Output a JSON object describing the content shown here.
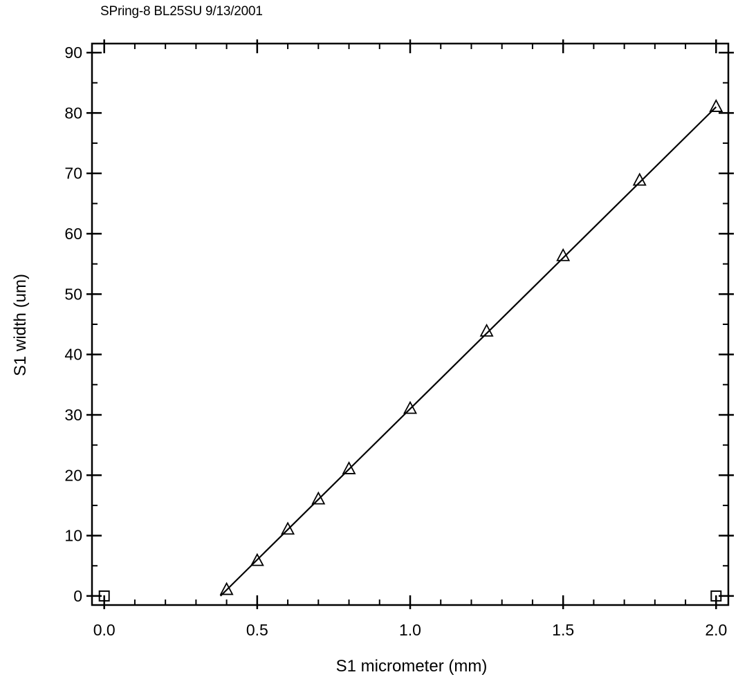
{
  "header_note": "SPring-8 BL25SU 9/13/2001",
  "chart_data": {
    "type": "line",
    "title": "",
    "xlabel": "S1 micrometer (mm)",
    "ylabel": "S1 width (um)",
    "xlim": [
      -0.04,
      2.04
    ],
    "ylim": [
      -1.5,
      91.5
    ],
    "x_ticks": [
      "0.0",
      "0.5",
      "1.0",
      "1.5",
      "2.0"
    ],
    "x_tick_values": [
      0,
      0.5,
      1.0,
      1.5,
      2.0
    ],
    "y_ticks": [
      "0",
      "10",
      "20",
      "30",
      "40",
      "50",
      "60",
      "70",
      "80",
      "90"
    ],
    "y_tick_values": [
      0,
      10,
      20,
      30,
      40,
      50,
      60,
      70,
      80,
      90
    ],
    "x_minor_step": 0.1,
    "y_minor_step": 5,
    "grid": false,
    "series": [
      {
        "marker": "open-triangle",
        "line": "linear-fit",
        "x": [
          0.4,
          0.5,
          0.6,
          0.7,
          0.8,
          1.0,
          1.25,
          1.5,
          1.75,
          2.0
        ],
        "y": [
          1.0,
          5.8,
          11.0,
          16.0,
          21.0,
          31.0,
          43.8,
          56.3,
          68.8,
          81.0
        ]
      }
    ],
    "fit_line": {
      "x": [
        0.38,
        2.0
      ],
      "y": [
        0.0,
        81.0
      ]
    },
    "extra_markers": [
      {
        "shape": "square",
        "x": 0.0,
        "y": 0.0
      },
      {
        "shape": "square",
        "x": 2.0,
        "y": 0.0
      }
    ]
  }
}
